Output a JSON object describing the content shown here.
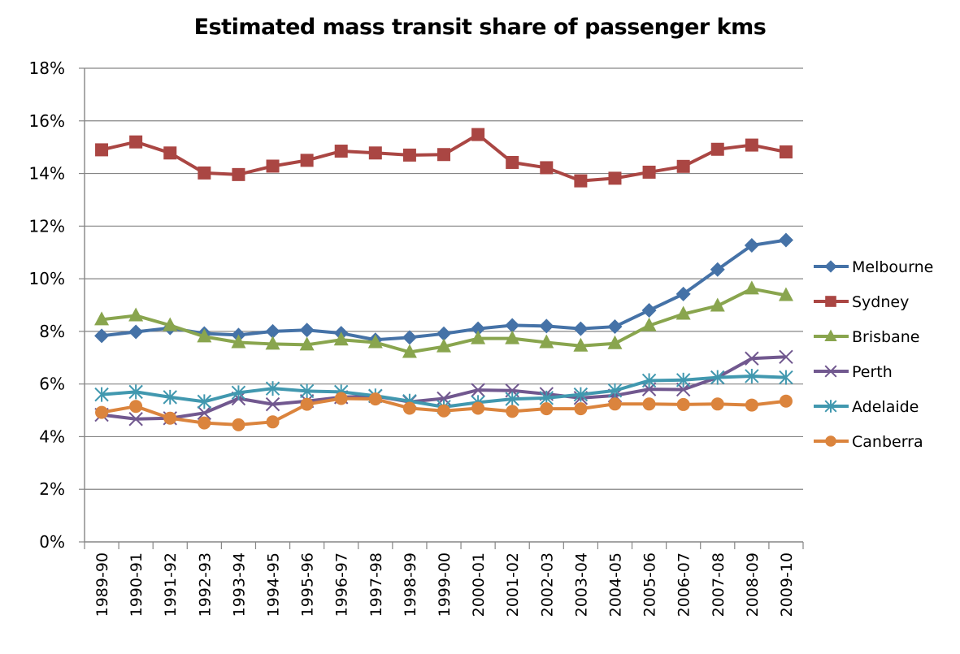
{
  "chart_data": {
    "type": "line",
    "title": "Estimated mass transit share of passenger kms",
    "xlabel": "",
    "ylabel": "",
    "ylim": [
      0,
      18
    ],
    "y_tick_step": 2,
    "y_tick_labels": [
      "0%",
      "2%",
      "4%",
      "6%",
      "8%",
      "10%",
      "12%",
      "14%",
      "16%",
      "18%"
    ],
    "y_unit": "%",
    "grid": "horizontal major",
    "legend_position": "right",
    "categories": [
      "1989-90",
      "1990-91",
      "1991-92",
      "1992-93",
      "1993-94",
      "1994-95",
      "1995-96",
      "1996-97",
      "1997-98",
      "1998-99",
      "1999-00",
      "2000-01",
      "2001-02",
      "2002-03",
      "2003-04",
      "2004-05",
      "2005-06",
      "2006-07",
      "2007-08",
      "2008-09",
      "2009-10"
    ],
    "series": [
      {
        "name": "Melbourne",
        "color": "#4572A7",
        "marker": "diamond",
        "values": [
          7.83,
          7.98,
          8.13,
          7.92,
          7.86,
          8.0,
          8.05,
          7.93,
          7.68,
          7.77,
          7.91,
          8.1,
          8.23,
          8.2,
          8.1,
          8.18,
          8.8,
          9.42,
          10.35,
          11.27,
          11.47
        ]
      },
      {
        "name": "Sydney",
        "color": "#AA4643",
        "marker": "square",
        "values": [
          14.9,
          15.2,
          14.78,
          14.02,
          13.96,
          14.28,
          14.5,
          14.85,
          14.78,
          14.7,
          14.72,
          15.48,
          14.42,
          14.22,
          13.72,
          13.82,
          14.05,
          14.27,
          14.92,
          15.08,
          14.82
        ]
      },
      {
        "name": "Brisbane",
        "color": "#89A54E",
        "marker": "triangle",
        "values": [
          8.45,
          8.6,
          8.23,
          7.8,
          7.58,
          7.52,
          7.49,
          7.68,
          7.58,
          7.21,
          7.42,
          7.73,
          7.73,
          7.58,
          7.45,
          7.54,
          8.22,
          8.66,
          8.97,
          9.62,
          9.37
        ]
      },
      {
        "name": "Perth",
        "color": "#71588F",
        "marker": "x",
        "values": [
          4.83,
          4.67,
          4.7,
          4.9,
          5.45,
          5.23,
          5.35,
          5.5,
          5.54,
          5.32,
          5.45,
          5.77,
          5.75,
          5.62,
          5.47,
          5.56,
          5.8,
          5.79,
          6.25,
          6.97,
          7.03
        ]
      },
      {
        "name": "Adelaide",
        "color": "#4198AF",
        "marker": "star",
        "values": [
          5.6,
          5.7,
          5.5,
          5.33,
          5.67,
          5.83,
          5.73,
          5.7,
          5.55,
          5.35,
          5.13,
          5.3,
          5.43,
          5.47,
          5.6,
          5.75,
          6.13,
          6.15,
          6.25,
          6.3,
          6.25
        ]
      },
      {
        "name": "Canberra",
        "color": "#DB843D",
        "marker": "circle",
        "values": [
          4.92,
          5.15,
          4.7,
          4.52,
          4.45,
          4.56,
          5.23,
          5.45,
          5.43,
          5.08,
          4.98,
          5.08,
          4.96,
          5.06,
          5.06,
          5.24,
          5.24,
          5.22,
          5.24,
          5.2,
          5.35
        ]
      }
    ]
  },
  "colors": {
    "gridline": "#868686",
    "axis": "#868686",
    "background": "#ffffff"
  }
}
